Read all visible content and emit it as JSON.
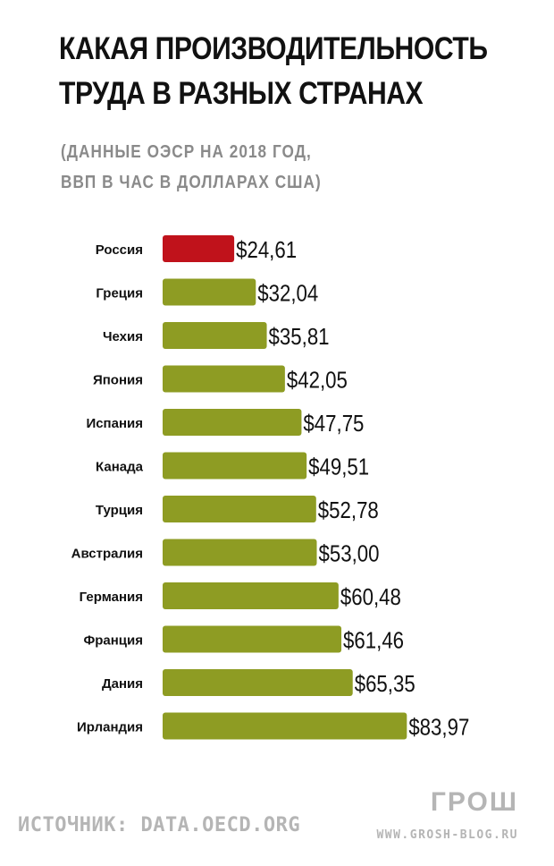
{
  "header": {
    "title_line1": "КАКАЯ ПРОИЗВОДИТЕЛЬНОСТЬ",
    "title_line2": "ТРУДА В РАЗНЫХ СТРАНАХ",
    "subtitle_line1": "(ДАННЫЕ ОЭСР НА 2018 ГОД,",
    "subtitle_line2": "ВВП В ЧАС В ДОЛЛАРАХ США)"
  },
  "chart_data": {
    "type": "bar",
    "orientation": "horizontal",
    "categories": [
      "Россия",
      "Греция",
      "Чехия",
      "Япония",
      "Испания",
      "Канада",
      "Турция",
      "Австралия",
      "Германия",
      "Франция",
      "Дания",
      "Ирландия"
    ],
    "values": [
      24.61,
      32.04,
      35.81,
      42.05,
      47.75,
      49.51,
      52.78,
      53.0,
      60.48,
      61.46,
      65.35,
      83.97
    ],
    "value_labels": [
      "$24,61",
      "$32,04",
      "$35,81",
      "$42,05",
      "$47,75",
      "$49,51",
      "$52,78",
      "$53,00",
      "$60,48",
      "$61,46",
      "$65,35",
      "$83,97"
    ],
    "highlight_index": 0,
    "highlight_color": "#c0121b",
    "bar_color": "#8e9c23",
    "grid": false,
    "legend": "none"
  },
  "footer": {
    "source": "ИСТОЧНИК: DATA.OECD.ORG",
    "logo": "ГРОШ",
    "site": "WWW.GROSH-BLOG.RU"
  }
}
